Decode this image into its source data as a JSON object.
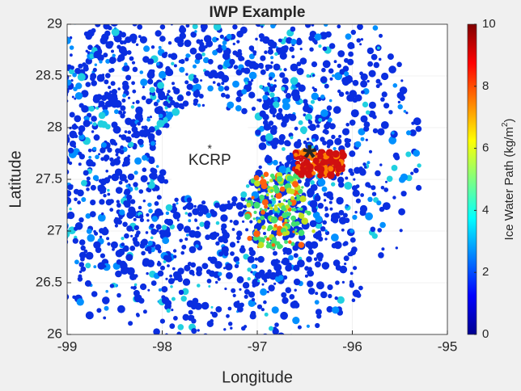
{
  "chart_data": {
    "type": "heatmap",
    "title": "IWP Example",
    "x_label": "Longitude",
    "y_label": "Latitude",
    "xlim": [
      -99,
      -95
    ],
    "xticks": [
      -99,
      -98,
      -97,
      -96,
      -95
    ],
    "ylim": [
      26,
      29
    ],
    "yticks": [
      26,
      26.5,
      27,
      27.5,
      28,
      28.5,
      29
    ],
    "grid": true,
    "colormap": "jet",
    "colorbar": {
      "label": "Ice Water Path (kg/m",
      "label_sup": "2",
      "label_end": ")",
      "clim": [
        0,
        10
      ],
      "ticks": [
        0,
        2,
        4,
        6,
        8,
        10
      ]
    },
    "annotations": [
      {
        "text": "*",
        "x": -97.5,
        "y": 27.82,
        "color": "#e8201a"
      },
      {
        "text": "KCRP",
        "x": -97.5,
        "y": 27.68,
        "color": "#e8201a"
      },
      {
        "text": "*",
        "x": -96.45,
        "y": 27.75,
        "color": "#000000"
      }
    ]
  }
}
